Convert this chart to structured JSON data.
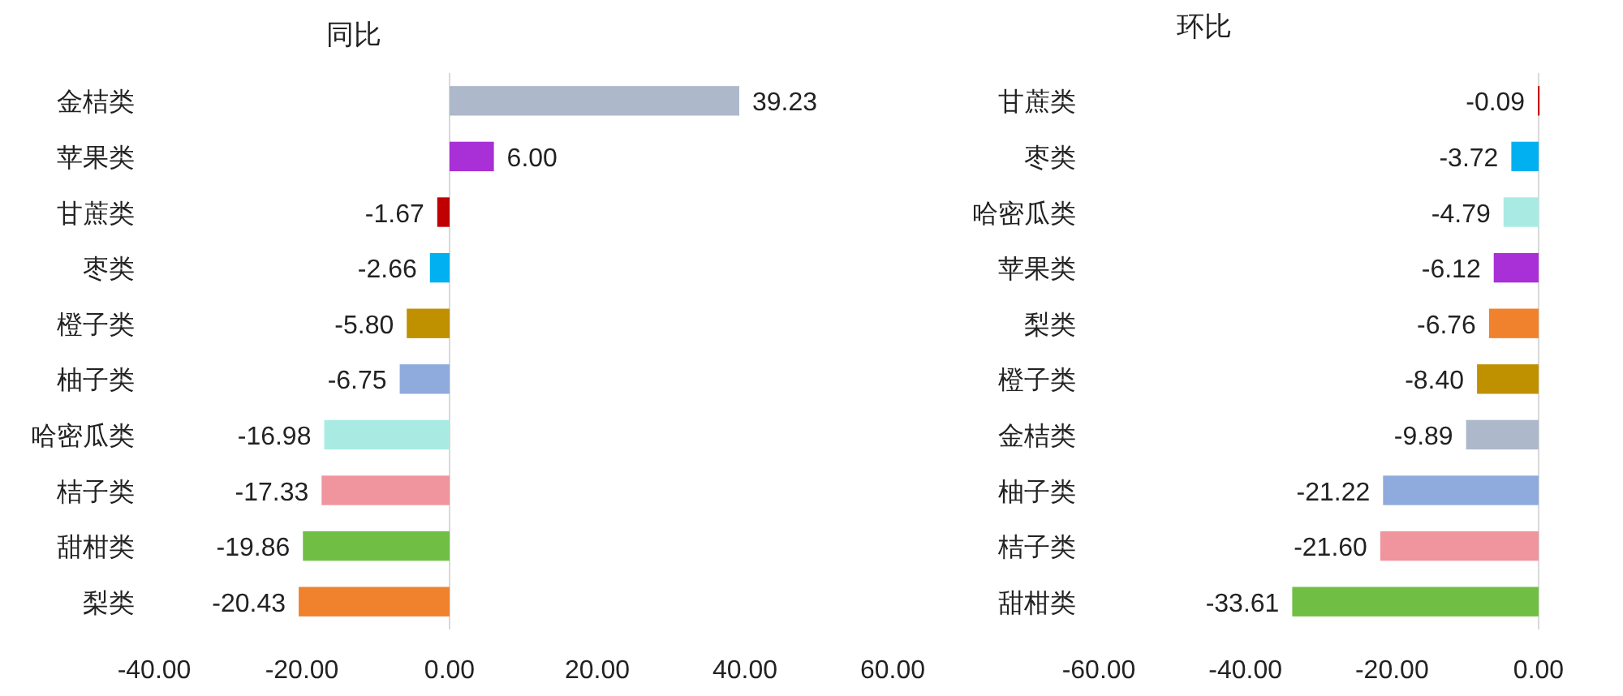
{
  "chart_data": [
    {
      "type": "bar",
      "orientation": "horizontal",
      "title": "同比",
      "categories": [
        "金桔类",
        "苹果类",
        "甘蔗类",
        "枣类",
        "橙子类",
        "柚子类",
        "哈密瓜类",
        "桔子类",
        "甜柑类",
        "梨类"
      ],
      "values": [
        39.23,
        6.0,
        -1.67,
        -2.66,
        -5.8,
        -6.75,
        -16.98,
        -17.33,
        -19.86,
        -20.43
      ],
      "value_labels": [
        "39.23",
        "6.00",
        "-1.67",
        "-2.66",
        "-5.80",
        "-6.75",
        "-16.98",
        "-17.33",
        "-19.86",
        "-20.43"
      ],
      "colors": [
        "#adb9ca",
        "#a92fd6",
        "#c00000",
        "#00b0f0",
        "#bf9000",
        "#8faadc",
        "#a9ebe3",
        "#f0949e",
        "#70bf44",
        "#f0822e"
      ],
      "xlim": [
        -40,
        60
      ],
      "xticks": [
        {
          "value": -40,
          "label": "-40.00"
        },
        {
          "value": -20,
          "label": "-20.00"
        },
        {
          "value": 0,
          "label": "0.00"
        },
        {
          "value": 20,
          "label": "20.00"
        },
        {
          "value": 40,
          "label": "40.00"
        },
        {
          "value": 60,
          "label": "60.00"
        }
      ]
    },
    {
      "type": "bar",
      "orientation": "horizontal",
      "title": "环比",
      "categories": [
        "甘蔗类",
        "枣类",
        "哈密瓜类",
        "苹果类",
        "梨类",
        "橙子类",
        "金桔类",
        "柚子类",
        "桔子类",
        "甜柑类"
      ],
      "values": [
        -0.09,
        -3.72,
        -4.79,
        -6.12,
        -6.76,
        -8.4,
        -9.89,
        -21.22,
        -21.6,
        -33.61
      ],
      "value_labels": [
        "-0.09",
        "-3.72",
        "-4.79",
        "-6.12",
        "-6.76",
        "-8.40",
        "-9.89",
        "-21.22",
        "-21.60",
        "-33.61"
      ],
      "colors": [
        "#c00000",
        "#00b0f0",
        "#a9ebe3",
        "#a92fd6",
        "#f0822e",
        "#bf9000",
        "#adb9ca",
        "#8faadc",
        "#f0949e",
        "#70bf44"
      ],
      "xlim": [
        -60,
        0
      ],
      "xticks": [
        {
          "value": -60,
          "label": "-60.00"
        },
        {
          "value": -40,
          "label": "-40.00"
        },
        {
          "value": -20,
          "label": "-20.00"
        },
        {
          "value": 0,
          "label": "0.00"
        }
      ]
    }
  ]
}
